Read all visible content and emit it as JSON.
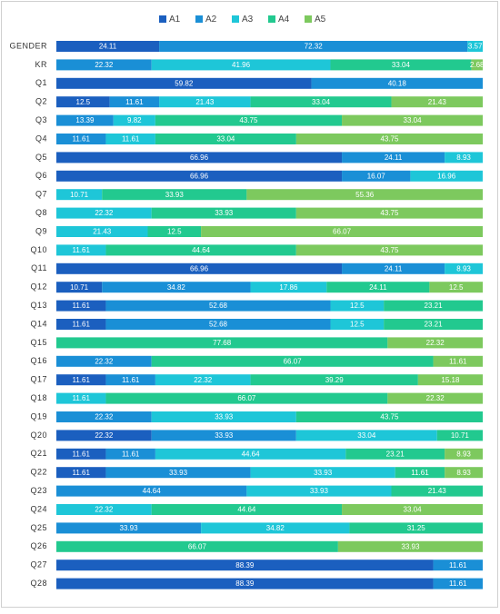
{
  "chart_data": {
    "type": "stacked-bar-horizontal",
    "categories": [
      "GENDER",
      "KR",
      "Q1",
      "Q2",
      "Q3",
      "Q4",
      "Q5",
      "Q6",
      "Q7",
      "Q8",
      "Q9",
      "Q10",
      "Q11",
      "Q12",
      "Q13",
      "Q14",
      "Q15",
      "Q16",
      "Q17",
      "Q18",
      "Q19",
      "Q20",
      "Q21",
      "Q22",
      "Q23",
      "Q24",
      "Q25",
      "Q26",
      "Q27",
      "Q28"
    ],
    "xlim": [
      0,
      100
    ],
    "legend": "top",
    "series": [
      {
        "name": "A1",
        "color": "#1b5fbf",
        "values": [
          24.11,
          0,
          59.82,
          12.5,
          0,
          0,
          66.96,
          66.96,
          0,
          0,
          0,
          0,
          66.96,
          10.71,
          11.61,
          11.61,
          0,
          0,
          11.61,
          0,
          0,
          22.32,
          11.61,
          11.61,
          0,
          0,
          0,
          0,
          88.39,
          88.39
        ]
      },
      {
        "name": "A2",
        "color": "#1a8fd6",
        "values": [
          72.32,
          22.32,
          40.18,
          11.61,
          13.39,
          11.61,
          24.11,
          16.07,
          0,
          0,
          0,
          0,
          24.11,
          34.82,
          52.68,
          52.68,
          0,
          22.32,
          11.61,
          0,
          22.32,
          33.93,
          11.61,
          33.93,
          44.64,
          0,
          33.93,
          0,
          11.61,
          11.61
        ]
      },
      {
        "name": "A3",
        "color": "#1ec6d8",
        "values": [
          3.57,
          41.96,
          0,
          21.43,
          9.82,
          11.61,
          8.93,
          16.96,
          10.71,
          22.32,
          21.43,
          11.61,
          8.93,
          17.86,
          12.5,
          12.5,
          0,
          0,
          22.32,
          11.61,
          33.93,
          33.04,
          44.64,
          33.93,
          33.93,
          22.32,
          34.82,
          0,
          0,
          0
        ]
      },
      {
        "name": "A4",
        "color": "#22c98f",
        "values": [
          0,
          33.04,
          0,
          33.04,
          43.75,
          33.04,
          0,
          0,
          33.93,
          33.93,
          12.5,
          44.64,
          0,
          24.11,
          23.21,
          23.21,
          77.68,
          66.07,
          39.29,
          66.07,
          43.75,
          10.71,
          23.21,
          11.61,
          21.43,
          44.64,
          31.25,
          66.07,
          0,
          0
        ]
      },
      {
        "name": "A5",
        "color": "#7dc95e",
        "values": [
          0,
          2.68,
          0,
          21.43,
          33.04,
          43.75,
          0,
          0,
          55.36,
          43.75,
          66.07,
          43.75,
          0,
          12.5,
          0,
          0,
          22.32,
          11.61,
          15.18,
          22.32,
          0,
          0,
          8.93,
          8.93,
          0,
          33.04,
          0,
          33.93,
          0,
          0
        ]
      }
    ]
  }
}
